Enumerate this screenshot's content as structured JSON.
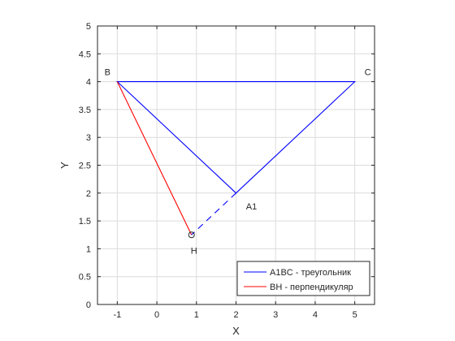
{
  "chart_data": {
    "type": "line",
    "title": "",
    "xlabel": "X",
    "ylabel": "Y",
    "xlim": [
      -1.5,
      5.5
    ],
    "ylim": [
      0,
      5
    ],
    "xticks": [
      -1,
      0,
      1,
      2,
      3,
      4,
      5
    ],
    "yticks": [
      0,
      0.5,
      1,
      1.5,
      2,
      2.5,
      3,
      3.5,
      4,
      4.5,
      5
    ],
    "grid": true,
    "legend_position": "bottom-right",
    "series": [
      {
        "name": "A1BC - треугольник",
        "color": "#0000ff",
        "x": [
          2,
          -1,
          5,
          2
        ],
        "y": [
          2,
          4,
          4,
          2
        ]
      },
      {
        "name": "BH - перпендикуляр",
        "color": "#ff0000",
        "x": [
          -1,
          0.875
        ],
        "y": [
          4,
          1.25
        ]
      }
    ],
    "extension_line": {
      "color": "#0000ff",
      "style": "dashed",
      "x": [
        2,
        0.875
      ],
      "y": [
        2,
        1.25
      ]
    },
    "foot_marker": {
      "shape": "circle",
      "x": 0.875,
      "y": 1.25
    },
    "point_labels": [
      {
        "text": "B",
        "x": -1,
        "y": 4
      },
      {
        "text": "C",
        "x": 5,
        "y": 4
      },
      {
        "text": "A1",
        "x": 2,
        "y": 2
      },
      {
        "text": "H",
        "x": 0.875,
        "y": 1.25
      }
    ]
  }
}
